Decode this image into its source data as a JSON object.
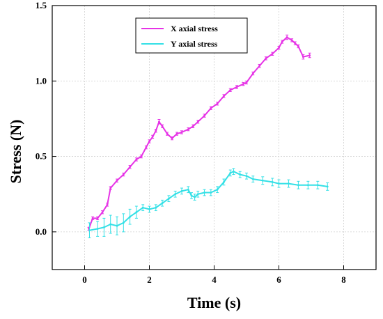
{
  "chart_data": {
    "type": "line",
    "title": "",
    "xlabel": "Time (s)",
    "ylabel": "Stress (N)",
    "xlim": [
      -1,
      9
    ],
    "ylim": [
      -0.25,
      1.5
    ],
    "xticks": [
      0,
      2,
      4,
      6,
      8
    ],
    "xtick_labels": [
      "0",
      "2",
      "4",
      "6",
      "8"
    ],
    "yticks": [
      0.0,
      0.5,
      1.0,
      1.5
    ],
    "ytick_labels": [
      "0.0",
      "0.5",
      "1.0",
      "1.5"
    ],
    "grid": true,
    "legend_position": "top-center",
    "series": [
      {
        "name": "X axial stress",
        "color": "#e633e6",
        "x": [
          0.13,
          0.25,
          0.4,
          0.55,
          0.7,
          0.8,
          1.0,
          1.2,
          1.4,
          1.6,
          1.75,
          1.9,
          2.0,
          2.1,
          2.2,
          2.3,
          2.4,
          2.55,
          2.7,
          2.85,
          3.0,
          3.2,
          3.35,
          3.5,
          3.7,
          3.9,
          4.1,
          4.3,
          4.5,
          4.7,
          4.9,
          5.0,
          5.2,
          5.4,
          5.6,
          5.8,
          6.0,
          6.1,
          6.25,
          6.4,
          6.5,
          6.6,
          6.75,
          6.95
        ],
        "y": [
          0.02,
          0.09,
          0.09,
          0.13,
          0.18,
          0.29,
          0.34,
          0.38,
          0.43,
          0.48,
          0.5,
          0.56,
          0.6,
          0.63,
          0.67,
          0.73,
          0.7,
          0.65,
          0.62,
          0.65,
          0.66,
          0.68,
          0.7,
          0.73,
          0.77,
          0.82,
          0.85,
          0.9,
          0.94,
          0.96,
          0.98,
          0.99,
          1.05,
          1.1,
          1.15,
          1.18,
          1.22,
          1.26,
          1.29,
          1.27,
          1.25,
          1.23,
          1.16,
          1.17
        ],
        "errors": [
          0.01,
          0.01,
          0.01,
          0.01,
          0.01,
          0.01,
          0.01,
          0.01,
          0.01,
          0.01,
          0.01,
          0.01,
          0.01,
          0.01,
          0.01,
          0.015,
          0.01,
          0.01,
          0.01,
          0.01,
          0.01,
          0.01,
          0.01,
          0.01,
          0.01,
          0.01,
          0.01,
          0.01,
          0.01,
          0.01,
          0.01,
          0.01,
          0.01,
          0.01,
          0.01,
          0.01,
          0.01,
          0.01,
          0.015,
          0.01,
          0.01,
          0.01,
          0.015,
          0.015
        ]
      },
      {
        "name": "Y axial stress",
        "color": "#33e0e6",
        "x": [
          0.15,
          0.4,
          0.6,
          0.8,
          1.0,
          1.2,
          1.4,
          1.6,
          1.8,
          2.0,
          2.2,
          2.4,
          2.6,
          2.8,
          3.0,
          3.2,
          3.3,
          3.4,
          3.5,
          3.7,
          3.9,
          4.1,
          4.3,
          4.5,
          4.6,
          4.8,
          5.0,
          5.2,
          5.5,
          5.8,
          6.0,
          6.3,
          6.6,
          6.9,
          7.2,
          7.5
        ],
        "y": [
          0.01,
          0.02,
          0.03,
          0.05,
          0.04,
          0.06,
          0.1,
          0.13,
          0.16,
          0.15,
          0.16,
          0.19,
          0.22,
          0.25,
          0.27,
          0.28,
          0.24,
          0.23,
          0.25,
          0.26,
          0.26,
          0.28,
          0.33,
          0.39,
          0.4,
          0.38,
          0.37,
          0.35,
          0.34,
          0.33,
          0.32,
          0.32,
          0.31,
          0.31,
          0.31,
          0.3
        ],
        "errors": [
          0.05,
          0.05,
          0.06,
          0.06,
          0.06,
          0.06,
          0.05,
          0.04,
          0.02,
          0.02,
          0.02,
          0.02,
          0.02,
          0.02,
          0.02,
          0.02,
          0.02,
          0.02,
          0.02,
          0.02,
          0.02,
          0.02,
          0.02,
          0.02,
          0.02,
          0.02,
          0.02,
          0.02,
          0.025,
          0.025,
          0.025,
          0.025,
          0.025,
          0.025,
          0.025,
          0.025
        ]
      }
    ]
  }
}
